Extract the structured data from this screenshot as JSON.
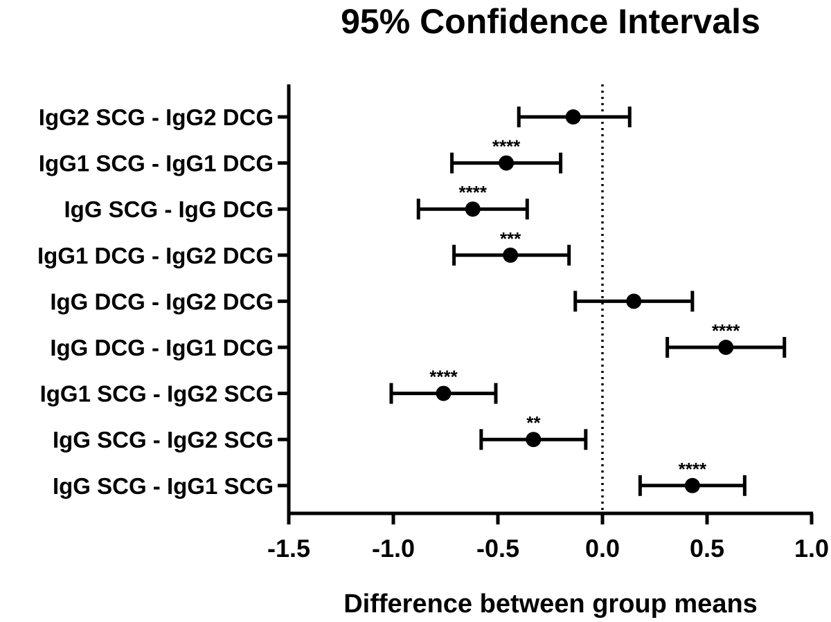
{
  "chart_data": {
    "type": "forest",
    "title": "95% Confidence Intervals",
    "xlabel": "Difference between group means",
    "ylabel": "",
    "xlim": [
      -1.5,
      1.0
    ],
    "xticks": [
      "-1.5",
      "-1.0",
      "-0.5",
      "0.0",
      "0.5",
      "1.0"
    ],
    "xtick_values": [
      -1.5,
      -1.0,
      -0.5,
      0.0,
      0.5,
      1.0
    ],
    "reference_line": 0.0,
    "rows": [
      {
        "label": "IgG2 SCG - IgG2 DCG",
        "mean": -0.14,
        "lower": -0.4,
        "upper": 0.13,
        "sig": ""
      },
      {
        "label": "IgG1 SCG - IgG1 DCG",
        "mean": -0.46,
        "lower": -0.72,
        "upper": -0.2,
        "sig": "****"
      },
      {
        "label": "IgG SCG - IgG DCG",
        "mean": -0.62,
        "lower": -0.88,
        "upper": -0.36,
        "sig": "****"
      },
      {
        "label": "IgG1 DCG - IgG2 DCG",
        "mean": -0.44,
        "lower": -0.71,
        "upper": -0.16,
        "sig": "***"
      },
      {
        "label": "IgG DCG - IgG2 DCG",
        "mean": 0.15,
        "lower": -0.13,
        "upper": 0.43,
        "sig": ""
      },
      {
        "label": "IgG DCG - IgG1 DCG",
        "mean": 0.59,
        "lower": 0.31,
        "upper": 0.87,
        "sig": "****"
      },
      {
        "label": "IgG1 SCG - IgG2 SCG",
        "mean": -0.76,
        "lower": -1.01,
        "upper": -0.51,
        "sig": "****"
      },
      {
        "label": "IgG SCG - IgG2 SCG",
        "mean": -0.33,
        "lower": -0.58,
        "upper": -0.08,
        "sig": "**"
      },
      {
        "label": "IgG SCG - IgG1 SCG",
        "mean": 0.43,
        "lower": 0.18,
        "upper": 0.68,
        "sig": "****"
      }
    ]
  }
}
